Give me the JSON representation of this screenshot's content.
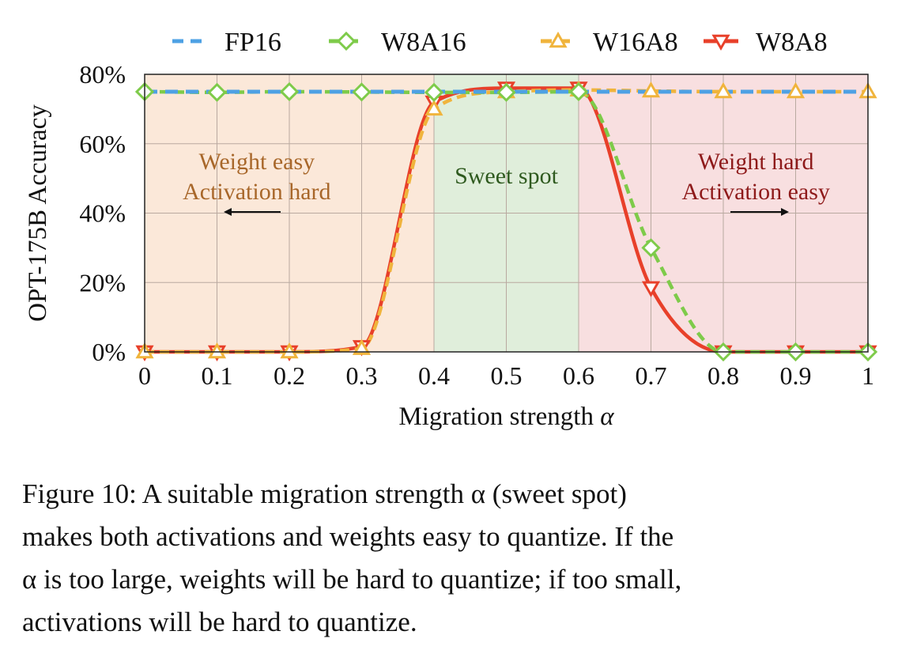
{
  "chart_data": {
    "type": "line",
    "ylabel": "OPT-175B Accuracy",
    "xlabel": "Migration strength α",
    "xlim": [
      0,
      1
    ],
    "ylim": [
      0,
      80
    ],
    "x_ticks": [
      "0",
      "0.1",
      "0.2",
      "0.3",
      "0.4",
      "0.5",
      "0.6",
      "0.7",
      "0.8",
      "0.9",
      "1"
    ],
    "y_ticks": [
      "0%",
      "20%",
      "40%",
      "60%",
      "80%"
    ],
    "grid": true,
    "legend_position": "top",
    "regions": [
      {
        "name": "weight-easy",
        "x_range": [
          0,
          0.4
        ],
        "labels": [
          "Weight easy",
          "Activation hard"
        ],
        "color": "#fbe8d9",
        "text_color": "#a8672a",
        "arrow": "left"
      },
      {
        "name": "sweet-spot",
        "x_range": [
          0.4,
          0.6
        ],
        "labels": [
          "Sweet spot"
        ],
        "color": "#e0eedb",
        "text_color": "#2f5a1f",
        "arrow": "none"
      },
      {
        "name": "weight-hard",
        "x_range": [
          0.6,
          1
        ],
        "labels": [
          "Weight hard",
          "Activation easy"
        ],
        "color": "#f8dfe0",
        "text_color": "#8e1a1a",
        "arrow": "right"
      }
    ],
    "x": [
      0,
      0.1,
      0.2,
      0.3,
      0.4,
      0.5,
      0.6,
      0.7,
      0.8,
      0.9,
      1
    ],
    "series": [
      {
        "name": "FP16",
        "color": "#4ea1e4",
        "marker": "none",
        "dash": "dash",
        "values": [
          75,
          75,
          75,
          75,
          75,
          75,
          75,
          75,
          75,
          75,
          75
        ]
      },
      {
        "name": "W8A16",
        "color": "#7ecb4a",
        "marker": "diamond",
        "dash": "dash",
        "values": [
          75,
          74.8,
          75,
          74.9,
          74.8,
          74.8,
          75,
          30,
          0,
          0,
          0
        ]
      },
      {
        "name": "W16A8",
        "color": "#f0b43c",
        "marker": "triangle-up",
        "dash": "dash",
        "values": [
          0,
          0,
          0,
          1,
          70,
          75,
          75.5,
          75.2,
          75,
          75,
          75
        ]
      },
      {
        "name": "W8A8",
        "color": "#e8402a",
        "marker": "triangle-down",
        "dash": "solid",
        "values": [
          0,
          0,
          0,
          1.5,
          72,
          76,
          76,
          18.5,
          0,
          0,
          0
        ]
      }
    ]
  },
  "caption": {
    "lines": [
      "Figure 10:  A suitable migration strength α (sweet spot)",
      "makes both activations and weights easy to quantize. If the",
      "α is too large, weights will be hard to quantize; if too small,",
      "activations will be hard to quantize."
    ]
  }
}
